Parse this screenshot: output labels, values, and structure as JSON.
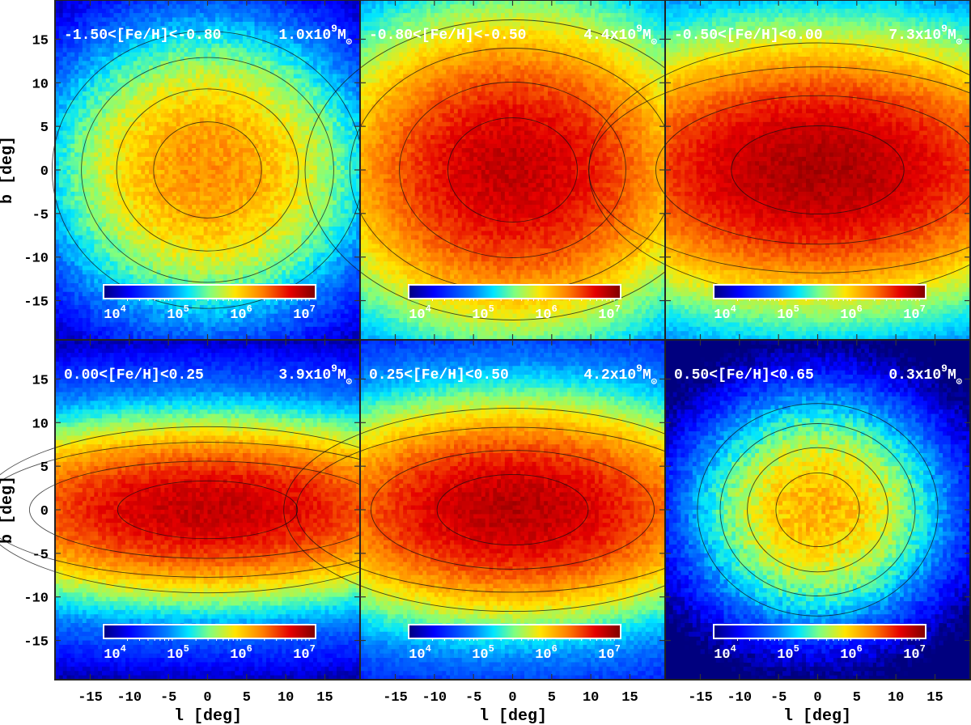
{
  "figure": {
    "xlabel": "l [deg]",
    "ylabel": "b [deg]",
    "x_ticks": [
      -15,
      -10,
      -5,
      0,
      5,
      10,
      15
    ],
    "y_ticks": [
      15,
      10,
      5,
      0,
      -5,
      -10,
      -15
    ],
    "xlim": [
      -19.5,
      19.5
    ],
    "ylim": [
      -19.5,
      19.5
    ],
    "colorbar_ticks": [
      {
        "base": "10",
        "exp": "4"
      },
      {
        "base": "10",
        "exp": "5"
      },
      {
        "base": "10",
        "exp": "6"
      },
      {
        "base": "10",
        "exp": "7"
      }
    ],
    "mass_unit": "M",
    "mass_unit_sub": "⊙",
    "colormap": [
      "#00007f",
      "#0000ff",
      "#007fff",
      "#00e5ff",
      "#7fff7f",
      "#ffe500",
      "#ff7f00",
      "#e50000",
      "#7f0000"
    ],
    "background_color": "#00007f"
  },
  "chart_data": [
    {
      "type": "heatmap",
      "label": "-1.50<[Fe/H]<-0.80",
      "mass_value": "1.0x10",
      "mass_exp": "9",
      "peak_log": 6.05,
      "sig_l": 7.5,
      "sig_b": 6.0,
      "disk_weight": 0.0,
      "noise": 0.3
    },
    {
      "type": "heatmap",
      "label": "-0.80<[Fe/H]<-0.50",
      "mass_value": "4.4x10",
      "mass_exp": "9",
      "peak_log": 6.75,
      "sig_l": 9.0,
      "sig_b": 6.5,
      "disk_weight": 0.15,
      "noise": 0.22
    },
    {
      "type": "heatmap",
      "label": "-0.50<[Fe/H]<0.00",
      "mass_value": "7.3x10",
      "mass_exp": "9",
      "peak_log": 6.85,
      "sig_l": 12.0,
      "sig_b": 5.5,
      "disk_weight": 0.45,
      "noise": 0.2
    },
    {
      "type": "heatmap",
      "label": "0.00<[Fe/H]<0.25",
      "mass_value": "3.9x10",
      "mass_exp": "9",
      "peak_log": 6.75,
      "sig_l": 12.5,
      "sig_b": 3.6,
      "disk_weight": 0.7,
      "noise": 0.22
    },
    {
      "type": "heatmap",
      "label": "0.25<[Fe/H]<0.50",
      "mass_value": "4.2x10",
      "mass_exp": "9",
      "peak_log": 6.8,
      "sig_l": 10.5,
      "sig_b": 4.4,
      "disk_weight": 0.45,
      "noise": 0.22
    },
    {
      "type": "heatmap",
      "label": "0.50<[Fe/H]<0.65",
      "mass_value": "0.3x10",
      "mass_exp": "9",
      "peak_log": 5.9,
      "sig_l": 5.8,
      "sig_b": 4.6,
      "disk_weight": 0.0,
      "noise": 0.35
    }
  ]
}
